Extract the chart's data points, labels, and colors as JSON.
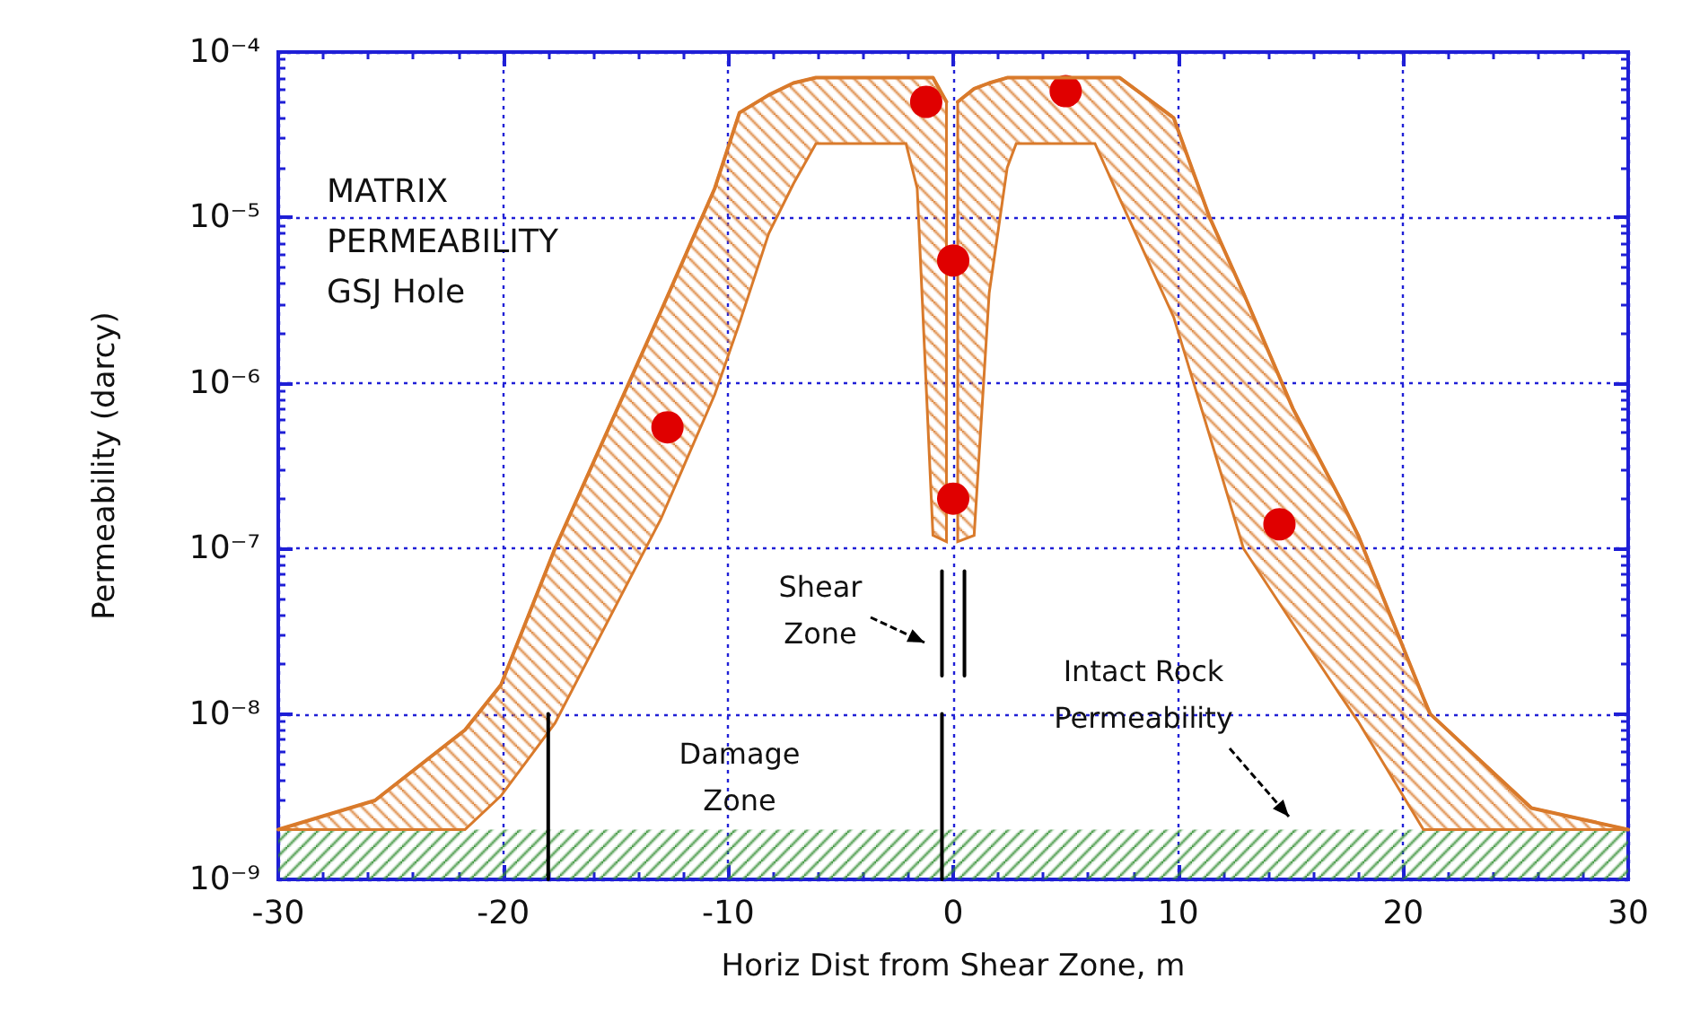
{
  "chart_data": {
    "type": "scatter",
    "title": "MATRIX\nPERMEABILITY\nGSJ Hole",
    "xlabel": "Horiz Dist from Shear Zone, m",
    "ylabel": "Permeability (darcy)",
    "log": "y",
    "grid": true,
    "xlim": [
      -30,
      30
    ],
    "xticks": [
      -30,
      -20,
      -10,
      0,
      10,
      20,
      30
    ],
    "ylim": [
      1e-09,
      0.0001
    ],
    "yticks": [
      {
        "value": 1e-09,
        "label": "10⁻⁹"
      },
      {
        "value": 1e-08,
        "label": "10⁻⁸"
      },
      {
        "value": 1e-07,
        "label": "10⁻⁷"
      },
      {
        "value": 1e-06,
        "label": "10⁻⁶"
      },
      {
        "value": 1e-05,
        "label": "10⁻⁵"
      },
      {
        "value": 0.0001,
        "label": "10⁻⁴"
      }
    ],
    "series": [
      {
        "type": "line",
        "color": "#d97a2b",
        "x": [
          -30,
          -25.7,
          -21.7,
          -20.1,
          -17.7,
          -13,
          -10.6,
          -9.5,
          -8.2,
          -7.1,
          -6.1,
          -2.1,
          -1.6,
          -0.9,
          -0.3
        ],
        "values": [
          2e-09,
          3e-09,
          8e-09,
          1.5e-08,
          1e-07,
          2.7e-06,
          1.5e-05,
          4.3e-05,
          5.5e-05,
          6.5e-05,
          7e-05,
          7e-05,
          7e-05,
          7e-05,
          5e-05
        ],
        "upper": [
          2e-09,
          3e-09,
          8e-09,
          1.5e-08,
          1e-07,
          2.7e-06,
          1.5e-05,
          4.3e-05,
          5.5e-05,
          6.5e-05,
          7e-05,
          7e-05,
          7e-05,
          7e-05,
          5e-05
        ],
        "lower": [
          2e-09,
          2e-09,
          2e-09,
          3.2e-09,
          8.8e-09,
          1.5e-07,
          8.5e-07,
          2.3e-06,
          8e-06,
          1.6e-05,
          2.8e-05,
          2.8e-05,
          1.5e-05,
          1.2e-07,
          1.1e-07
        ]
      },
      {
        "type": "line",
        "color": "#d97a2b",
        "x": [
          0.2,
          0.93,
          1.6,
          2.4,
          2.8,
          6.3,
          7.4,
          9.8,
          11.4,
          12.9,
          15.1,
          17.2,
          18,
          20.9,
          21.2,
          25.7,
          30
        ],
        "values": [
          5e-05,
          6e-05,
          6.5e-05,
          7e-05,
          7e-05,
          7e-05,
          7e-05,
          4e-05,
          1e-05,
          3.5e-06,
          7e-07,
          2e-07,
          1.2e-07,
          1.25e-08,
          1e-08,
          2.7e-09,
          2e-09
        ],
        "upper": [
          5e-05,
          6e-05,
          6.5e-05,
          7e-05,
          7e-05,
          7e-05,
          7e-05,
          4e-05,
          1e-05,
          3.5e-06,
          7e-07,
          2e-07,
          1.2e-07,
          1.25e-08,
          1e-08,
          2.7e-09,
          2e-09
        ],
        "lower": [
          1.1e-07,
          1.2e-07,
          3.5e-06,
          2e-05,
          2.8e-05,
          2.8e-05,
          1.3e-05,
          2.5e-06,
          4.8e-07,
          1e-07,
          3.5e-08,
          1.3e-08,
          9e-09,
          2e-09,
          2e-09,
          2e-09,
          2e-09
        ]
      },
      {
        "type": "line",
        "color": "#000000",
        "x": [
          -18,
          -18
        ],
        "values": [
          1e-09,
          1e-08
        ]
      },
      {
        "type": "line",
        "color": "#000000",
        "x": [
          -0.5,
          -0.5
        ],
        "values": [
          1e-09,
          1e-08
        ]
      },
      {
        "type": "line",
        "color": "#000000",
        "x": [
          -0.5,
          -0.5
        ],
        "values": [
          1.7e-08,
          7.3e-08
        ]
      },
      {
        "type": "line",
        "color": "#000000",
        "x": [
          0.5,
          0.5
        ],
        "values": [
          1.7e-08,
          7.3e-08
        ]
      },
      {
        "color": "#e00000",
        "marker": "circle",
        "x": [
          -12.7,
          -1.2,
          0,
          0,
          5,
          14.5
        ],
        "values": [
          5.4e-07,
          5e-05,
          5.5e-06,
          2e-07,
          5.8e-05,
          1.4e-07
        ]
      }
    ],
    "bands": [
      {
        "axis": "y",
        "from": 1e-09,
        "to": 2e-09,
        "color": "#2e8b2e"
      }
    ],
    "annotations": [
      "Shear\nZone",
      "Damage\nZone",
      "Intact Rock\nPermeability"
    ]
  }
}
